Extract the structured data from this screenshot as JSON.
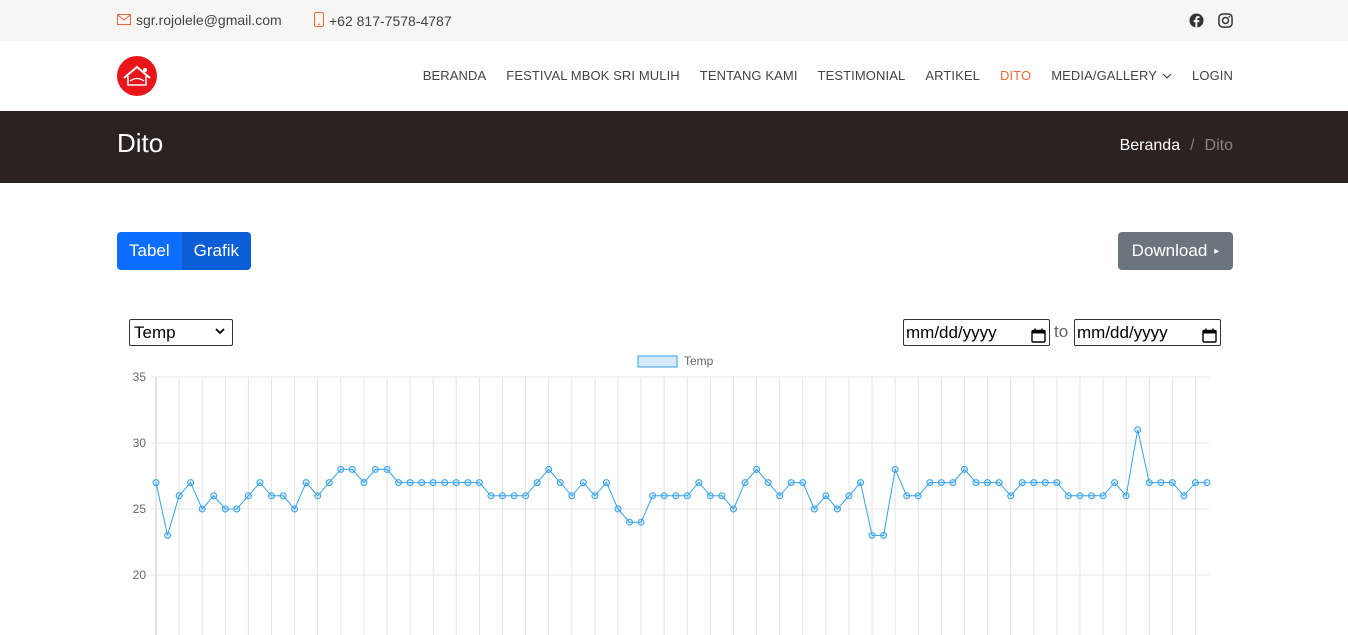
{
  "topbar": {
    "email": "sgr.rojolele@gmail.com",
    "phone": "+62 817-7578-4787",
    "social": [
      "facebook-icon",
      "instagram-icon"
    ]
  },
  "nav": {
    "items": [
      {
        "label": "BERANDA"
      },
      {
        "label": "FESTIVAL MBOK SRI MULIH"
      },
      {
        "label": "TENTANG KAMI"
      },
      {
        "label": "TESTIMONIAL"
      },
      {
        "label": "ARTIKEL"
      },
      {
        "label": "DITO",
        "active": true
      },
      {
        "label": "MEDIA/GALLERY",
        "dropdown": true
      },
      {
        "label": "LOGIN"
      }
    ]
  },
  "page": {
    "title": "Dito",
    "breadcrumb_home": "Beranda",
    "breadcrumb_sep": "/",
    "breadcrumb_current": "Dito"
  },
  "toolbar": {
    "tabel_label": "Tabel",
    "grafik_label": "Grafik",
    "download_label": "Download"
  },
  "filters": {
    "sensor_selected": "Temp",
    "date_from": "mm/dd/yyyy",
    "to_label": "to",
    "date_to": "mm/dd/yyyy"
  },
  "colors": {
    "accent": "#e96b3a",
    "primary": "#0d6efd",
    "line": "#36a2eb",
    "banner": "#2c2320"
  },
  "chart_data": {
    "type": "line",
    "series": [
      {
        "name": "Temp",
        "values": [
          27,
          23,
          26,
          27,
          25,
          26,
          25,
          25,
          26,
          27,
          26,
          26,
          25,
          27,
          26,
          27,
          28,
          28,
          27,
          28,
          28,
          27,
          27,
          27,
          27,
          27,
          27,
          27,
          27,
          26,
          26,
          26,
          26,
          27,
          28,
          27,
          26,
          27,
          26,
          27,
          25,
          24,
          24,
          26,
          26,
          26,
          26,
          27,
          26,
          26,
          25,
          27,
          28,
          27,
          26,
          27,
          27,
          25,
          26,
          25,
          26,
          27,
          23,
          23,
          28,
          26,
          26,
          27,
          27,
          27,
          28,
          27,
          27,
          27,
          26,
          27,
          27,
          27,
          27,
          26,
          26,
          26,
          26,
          27,
          26,
          31,
          27,
          27,
          27,
          26,
          27,
          27
        ]
      }
    ],
    "y_ticks": [
      20,
      25,
      30,
      35
    ],
    "ylim": [
      20,
      35
    ],
    "grid": true,
    "legend": "top-center"
  }
}
